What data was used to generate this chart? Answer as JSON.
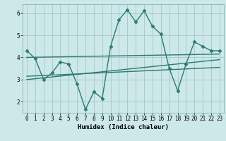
{
  "title": "",
  "xlabel": "Humidex (Indice chaleur)",
  "ylabel": "",
  "background_color": "#cce8e8",
  "grid_color": "#aacccc",
  "line_color": "#2d7a6e",
  "xlim": [
    -0.5,
    23.5
  ],
  "ylim": [
    1.5,
    6.4
  ],
  "xticks": [
    0,
    1,
    2,
    3,
    4,
    5,
    6,
    7,
    8,
    9,
    10,
    11,
    12,
    13,
    14,
    15,
    16,
    17,
    18,
    19,
    20,
    21,
    22,
    23
  ],
  "yticks": [
    2,
    3,
    4,
    5,
    6
  ],
  "series": [
    {
      "x": [
        0,
        1,
        2,
        3,
        4,
        5,
        6,
        7,
        8,
        9,
        10,
        11,
        12,
        13,
        14,
        15,
        16,
        17,
        18,
        19,
        20,
        21,
        22,
        23
      ],
      "y": [
        4.3,
        3.95,
        3.0,
        3.3,
        3.8,
        3.7,
        2.8,
        1.65,
        2.45,
        2.15,
        4.5,
        5.7,
        6.15,
        5.6,
        6.1,
        5.4,
        5.05,
        3.5,
        2.5,
        3.7,
        4.7,
        4.5,
        4.3,
        4.3
      ],
      "marker": "D",
      "markersize": 2.5,
      "linewidth": 1.0
    },
    {
      "x": [
        0,
        23
      ],
      "y": [
        4.0,
        4.15
      ],
      "marker": null,
      "linewidth": 1.0
    },
    {
      "x": [
        0,
        23
      ],
      "y": [
        3.15,
        3.55
      ],
      "marker": null,
      "linewidth": 1.0
    },
    {
      "x": [
        0,
        23
      ],
      "y": [
        3.0,
        3.9
      ],
      "marker": null,
      "linewidth": 1.0
    }
  ]
}
